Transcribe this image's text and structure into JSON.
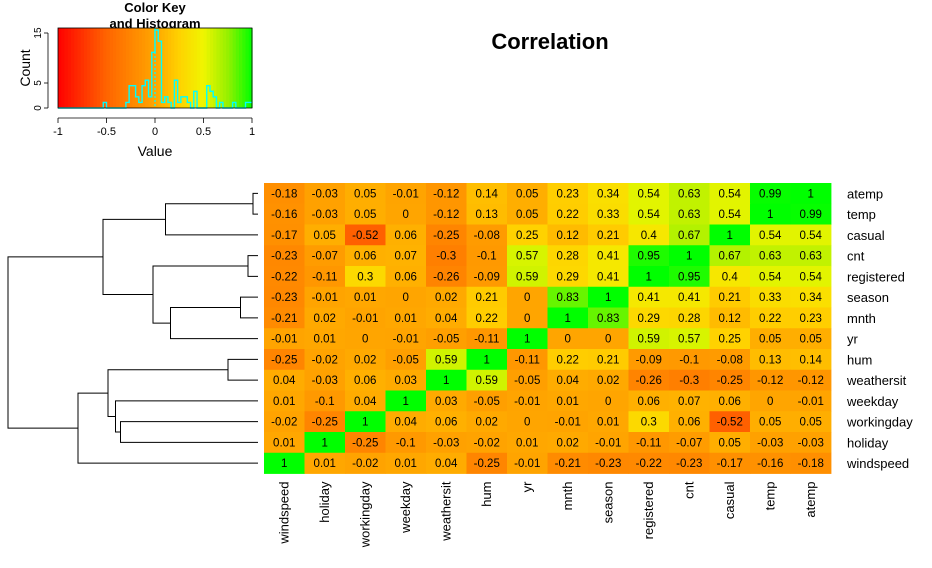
{
  "chart_data": {
    "type": "heatmap",
    "title": "Correlation",
    "rows": [
      "atemp",
      "temp",
      "casual",
      "cnt",
      "registered",
      "season",
      "mnth",
      "yr",
      "hum",
      "weathersit",
      "weekday",
      "workingday",
      "holiday",
      "windspeed"
    ],
    "columns": [
      "windspeed",
      "holiday",
      "workingday",
      "weekday",
      "weathersit",
      "hum",
      "yr",
      "mnth",
      "season",
      "registered",
      "cnt",
      "casual",
      "temp",
      "atemp"
    ],
    "values": [
      [
        "-0.18",
        "-0.03",
        "0.05",
        "-0.01",
        "-0.12",
        "0.14",
        "0.05",
        "0.23",
        "0.34",
        "0.54",
        "0.63",
        "0.54",
        "0.99",
        "1"
      ],
      [
        "-0.16",
        "-0.03",
        "0.05",
        "0",
        "-0.12",
        "0.13",
        "0.05",
        "0.22",
        "0.33",
        "0.54",
        "0.63",
        "0.54",
        "1",
        "0.99"
      ],
      [
        "-0.17",
        "0.05",
        "-0.52",
        "0.06",
        "-0.25",
        "-0.08",
        "0.25",
        "0.12",
        "0.21",
        "0.4",
        "0.67",
        "1",
        "0.54",
        "0.54"
      ],
      [
        "-0.23",
        "-0.07",
        "0.06",
        "0.07",
        "-0.3",
        "-0.1",
        "0.57",
        "0.28",
        "0.41",
        "0.95",
        "1",
        "0.67",
        "0.63",
        "0.63"
      ],
      [
        "-0.22",
        "-0.11",
        "0.3",
        "0.06",
        "-0.26",
        "-0.09",
        "0.59",
        "0.29",
        "0.41",
        "1",
        "0.95",
        "0.4",
        "0.54",
        "0.54"
      ],
      [
        "-0.23",
        "-0.01",
        "0.01",
        "0",
        "0.02",
        "0.21",
        "0",
        "0.83",
        "1",
        "0.41",
        "0.41",
        "0.21",
        "0.33",
        "0.34"
      ],
      [
        "-0.21",
        "0.02",
        "-0.01",
        "0.01",
        "0.04",
        "0.22",
        "0",
        "1",
        "0.83",
        "0.29",
        "0.28",
        "0.12",
        "0.22",
        "0.23"
      ],
      [
        "-0.01",
        "0.01",
        "0",
        "-0.01",
        "-0.05",
        "-0.11",
        "1",
        "0",
        "0",
        "0.59",
        "0.57",
        "0.25",
        "0.05",
        "0.05"
      ],
      [
        "-0.25",
        "-0.02",
        "0.02",
        "-0.05",
        "0.59",
        "1",
        "-0.11",
        "0.22",
        "0.21",
        "-0.09",
        "-0.1",
        "-0.08",
        "0.13",
        "0.14"
      ],
      [
        "0.04",
        "-0.03",
        "0.06",
        "0.03",
        "1",
        "0.59",
        "-0.05",
        "0.04",
        "0.02",
        "-0.26",
        "-0.3",
        "-0.25",
        "-0.12",
        "-0.12"
      ],
      [
        "0.01",
        "-0.1",
        "0.04",
        "1",
        "0.03",
        "-0.05",
        "-0.01",
        "0.01",
        "0",
        "0.06",
        "0.07",
        "0.06",
        "0",
        "-0.01"
      ],
      [
        "-0.02",
        "-0.25",
        "1",
        "0.04",
        "0.06",
        "0.02",
        "0",
        "-0.01",
        "0.01",
        "0.3",
        "0.06",
        "-0.52",
        "0.05",
        "0.05"
      ],
      [
        "0.01",
        "1",
        "-0.25",
        "-0.1",
        "-0.03",
        "-0.02",
        "0.01",
        "0.02",
        "-0.01",
        "-0.11",
        "-0.07",
        "0.05",
        "-0.03",
        "-0.03"
      ],
      [
        "1",
        "0.01",
        "-0.02",
        "0.01",
        "0.04",
        "-0.25",
        "-0.01",
        "-0.21",
        "-0.23",
        "-0.22",
        "-0.23",
        "-0.17",
        "-0.16",
        "-0.18"
      ]
    ],
    "color_scale": {
      "low": "#ff0000",
      "mid": "#ffff00",
      "high": "#00ff00",
      "range": [
        -1,
        1
      ]
    },
    "color_key": {
      "title_line1": "Color Key",
      "title_line2": "and Histogram",
      "xlabel": "Value",
      "ylabel": "Count",
      "x_ticks": [
        "-1",
        "-0.5",
        "0",
        "0.5",
        "1"
      ],
      "y_ticks": [
        "0",
        "5",
        "15"
      ],
      "histogram_color": "#00ffff"
    },
    "row_dendrogram": true
  }
}
